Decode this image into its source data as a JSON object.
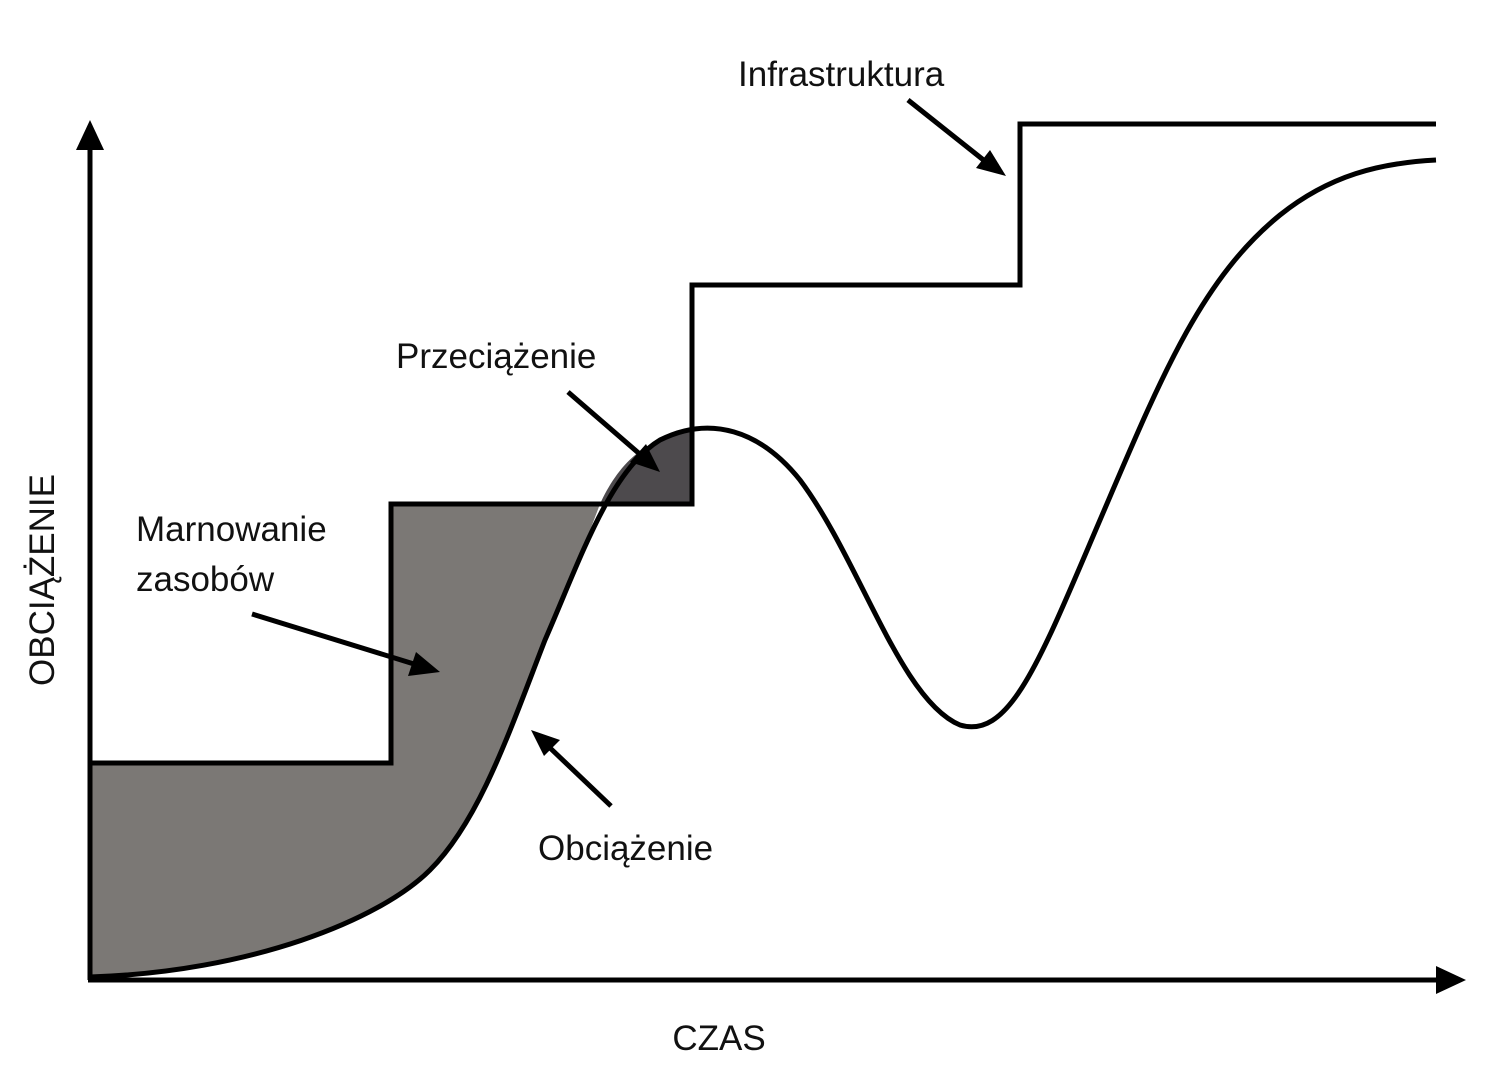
{
  "axes": {
    "x_title": "CZAS",
    "y_title": "OBCIĄŻENIE"
  },
  "annotations": {
    "infrastructure": "Infrastruktura",
    "overload": "Przeciążenie",
    "waste_line1": "Marnowanie",
    "waste_line2": "zasobów",
    "load": "Obciążenie"
  },
  "colors": {
    "waste_fill": "#7b7875",
    "overload_fill": "#4d4a4d",
    "stroke": "#000000",
    "background": "#ffffff"
  }
}
